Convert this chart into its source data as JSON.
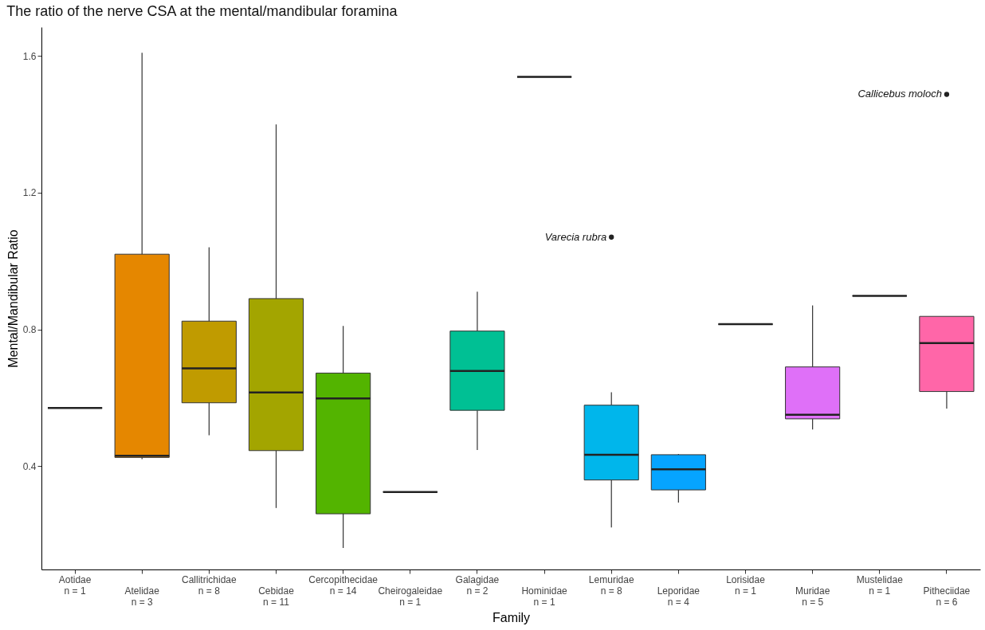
{
  "chart_data": {
    "type": "box",
    "title": "The ratio of the nerve CSA at the mental/mandibular foramina",
    "xlabel": "Family",
    "ylabel": "Mental/Mandibular Ratio",
    "categories": [
      "Aotidae\nn = 1",
      "Atelidae\nn = 3",
      "Callitrichidae\nn = 8",
      "Cebidae\nn = 11",
      "Cercopithecidae\nn = 14",
      "Cheirogaleidae\nn = 1",
      "Galagidae\nn = 2",
      "Hominidae\nn = 1",
      "Lemuridae\nn = 8",
      "Leporidae\nn = 4",
      "Lorisidae\nn = 1",
      "Muridae\nn = 5",
      "Mustelidae\nn = 1",
      "Pitheciidae\nn = 6"
    ],
    "colors": [
      null,
      "#e58700",
      "#c09b00",
      "#a3a500",
      "#53b400",
      null,
      "#00c094",
      null,
      "#00b6eb",
      "#06a4ff",
      null,
      "#df70f8",
      null,
      "#ff66a8"
    ],
    "boxes": [
      {
        "low": 0.57,
        "q1": 0.57,
        "median": 0.57,
        "q3": 0.57,
        "high": 0.57
      },
      {
        "low": 0.42,
        "q1": 0.425,
        "median": 0.43,
        "q3": 1.02,
        "high": 1.61
      },
      {
        "low": 0.49,
        "q1": 0.585,
        "median": 0.686,
        "q3": 0.824,
        "high": 1.04
      },
      {
        "low": 0.277,
        "q1": 0.445,
        "median": 0.615,
        "q3": 0.89,
        "high": 1.4
      },
      {
        "low": 0.16,
        "q1": 0.26,
        "median": 0.598,
        "q3": 0.672,
        "high": 0.81
      },
      {
        "low": 0.324,
        "q1": 0.324,
        "median": 0.324,
        "q3": 0.324,
        "high": 0.324
      },
      {
        "low": 0.447,
        "q1": 0.563,
        "median": 0.678,
        "q3": 0.795,
        "high": 0.91
      },
      {
        "low": 1.539,
        "q1": 1.539,
        "median": 1.539,
        "q3": 1.539,
        "high": 1.539
      },
      {
        "low": 0.22,
        "q1": 0.359,
        "median": 0.433,
        "q3": 0.578,
        "high": 0.616,
        "outliers": [
          1.07
        ]
      },
      {
        "low": 0.293,
        "q1": 0.33,
        "median": 0.39,
        "q3": 0.433,
        "high": 0.435
      },
      {
        "low": 0.815,
        "q1": 0.815,
        "median": 0.815,
        "q3": 0.815,
        "high": 0.815
      },
      {
        "low": 0.507,
        "q1": 0.538,
        "median": 0.55,
        "q3": 0.69,
        "high": 0.87
      },
      {
        "low": 0.898,
        "q1": 0.898,
        "median": 0.898,
        "q3": 0.898,
        "high": 0.898
      },
      {
        "low": 0.568,
        "q1": 0.618,
        "median": 0.76,
        "q3": 0.838,
        "high": 0.838,
        "outliers": [
          1.488
        ]
      }
    ],
    "annotations": [
      "Varecia rubra",
      "Callicebus moloch"
    ],
    "ylim": [
      0.097,
      1.685
    ],
    "yticks": [
      0.4,
      0.8,
      1.2,
      1.6
    ]
  }
}
